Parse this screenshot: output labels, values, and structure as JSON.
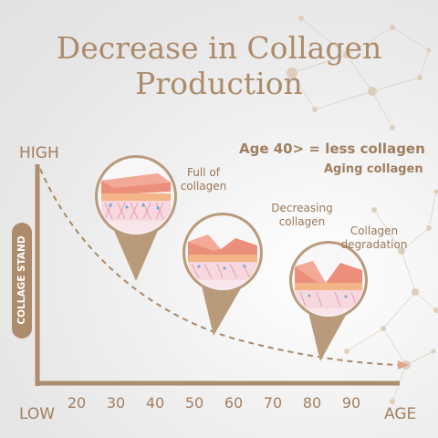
{
  "title_line_1": "Decrease in Collagen",
  "title_line_2": "Production",
  "headline": "Age 40> = less collagen",
  "subline": "Aging collagen",
  "y_axis": {
    "high": "HIGH",
    "low": "LOW",
    "label": "COLLAGE STAND"
  },
  "x_axis": {
    "ticks": [
      "20",
      "30",
      "40",
      "50",
      "60",
      "70",
      "80",
      "90"
    ],
    "end_label": "AGE"
  },
  "stages": [
    {
      "note": "Full of collagen"
    },
    {
      "note": "Decreasing collagen"
    },
    {
      "note": "Collagen degradation"
    }
  ],
  "colors": {
    "accent": "#ad8b6a",
    "background": "#e9e9e9"
  }
}
